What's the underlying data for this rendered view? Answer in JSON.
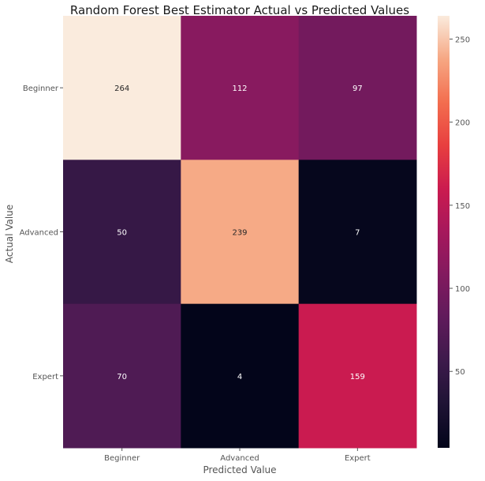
{
  "chart_data": {
    "type": "heatmap",
    "title": "Random Forest Best Estimator Actual vs Predicted Values",
    "xlabel": "Predicted Value",
    "ylabel": "Actual Value",
    "x_categories": [
      "Beginner",
      "Advanced",
      "Expert"
    ],
    "y_categories": [
      "Beginner",
      "Advanced",
      "Expert"
    ],
    "values": [
      [
        264,
        112,
        97
      ],
      [
        50,
        239,
        7
      ],
      [
        70,
        4,
        159
      ]
    ],
    "colormap": "rocket",
    "colorbar": {
      "range": [
        4,
        264
      ],
      "ticks": [
        50,
        100,
        150,
        200,
        250
      ]
    }
  }
}
